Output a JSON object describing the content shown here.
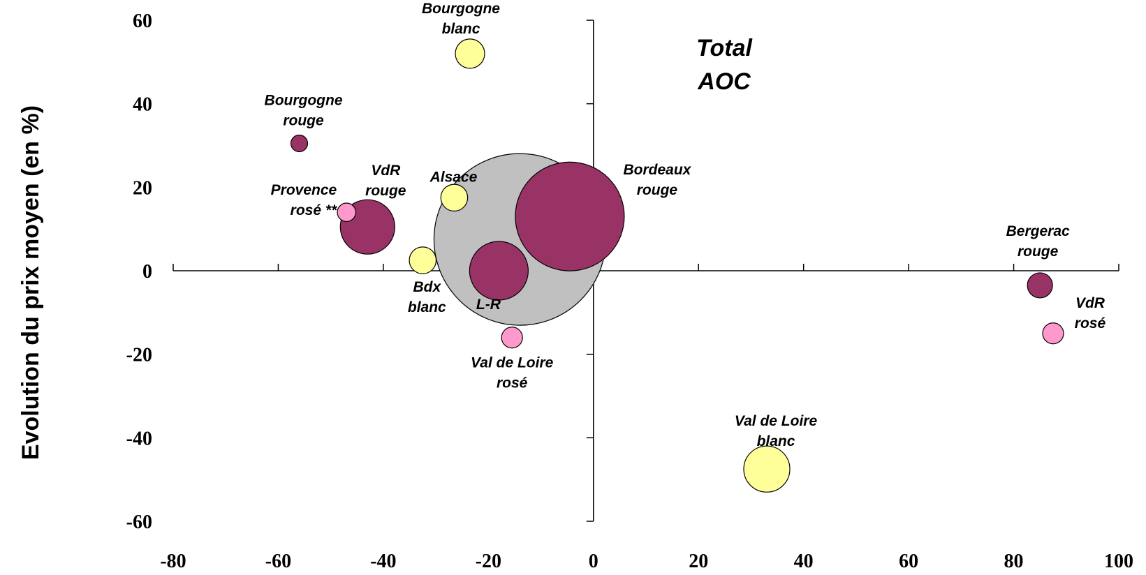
{
  "chart_data": {
    "type": "scatter",
    "title": "Total AOC",
    "title_lines": [
      "Total",
      "AOC"
    ],
    "xlabel": "",
    "ylabel": "Evolution du prix moyen (en %)",
    "xlim": [
      -80,
      100
    ],
    "ylim": [
      -60,
      60
    ],
    "x_ticks": [
      -80,
      -60,
      -40,
      -20,
      0,
      20,
      40,
      60,
      80,
      100
    ],
    "y_ticks": [
      60,
      40,
      20,
      0,
      -20,
      -40,
      -60
    ],
    "grid": false,
    "legend": "none",
    "colors": {
      "rouge": "#993366",
      "blanc": "#FFFF99",
      "rose": "#FF99CC",
      "total": "#C0C0C0"
    },
    "points": [
      {
        "label": "Total AOC",
        "label_lines": [],
        "x": -14,
        "y": 7.5,
        "size": 20.5,
        "color": "total"
      },
      {
        "label": "Bordeaux rouge",
        "label_lines": [
          "Bordeaux",
          "rouge"
        ],
        "x": -4.5,
        "y": 13,
        "size": 13,
        "color": "rouge"
      },
      {
        "label": "L-R",
        "label_lines": [
          "L-R"
        ],
        "x": -18,
        "y": 0,
        "size": 7,
        "color": "rouge"
      },
      {
        "label": "VdR rouge",
        "label_lines": [
          "VdR",
          "rouge"
        ],
        "x": -43,
        "y": 10.5,
        "size": 6.5,
        "color": "rouge"
      },
      {
        "label": "Bourgogne rouge",
        "label_lines": [
          "Bourgogne",
          "rouge"
        ],
        "x": -56,
        "y": 30.5,
        "size": 2,
        "color": "rouge"
      },
      {
        "label": "Bergerac rouge",
        "label_lines": [
          "Bergerac",
          "rouge"
        ],
        "x": 85,
        "y": -3.5,
        "size": 3,
        "color": "rouge"
      },
      {
        "label": "Bourgogne blanc",
        "label_lines": [
          "Bourgogne",
          "blanc"
        ],
        "x": -23.5,
        "y": 52,
        "size": 3.5,
        "color": "blanc"
      },
      {
        "label": "Alsace",
        "label_lines": [
          "Alsace"
        ],
        "x": -26.5,
        "y": 17.5,
        "size": 3.2,
        "color": "blanc"
      },
      {
        "label": "Bdx blanc",
        "label_lines": [
          "Bdx",
          "blanc"
        ],
        "x": -32.5,
        "y": 2.5,
        "size": 3.2,
        "color": "blanc"
      },
      {
        "label": "Val de Loire blanc",
        "label_lines": [
          "Val de Loire",
          "blanc"
        ],
        "x": 33,
        "y": -47.5,
        "size": 5.5,
        "color": "blanc"
      },
      {
        "label": "Provence rosé **",
        "label_lines": [
          "Provence",
          "rosé **"
        ],
        "x": -47,
        "y": 14,
        "size": 2.2,
        "color": "rose"
      },
      {
        "label": "Val de Loire rosé",
        "label_lines": [
          "Val de Loire",
          "rosé"
        ],
        "x": -15.5,
        "y": -16,
        "size": 2.5,
        "color": "rose"
      },
      {
        "label": "VdR rosé",
        "label_lines": [
          "VdR",
          "rosé"
        ],
        "x": 87.5,
        "y": -15,
        "size": 2.5,
        "color": "rose"
      }
    ]
  }
}
